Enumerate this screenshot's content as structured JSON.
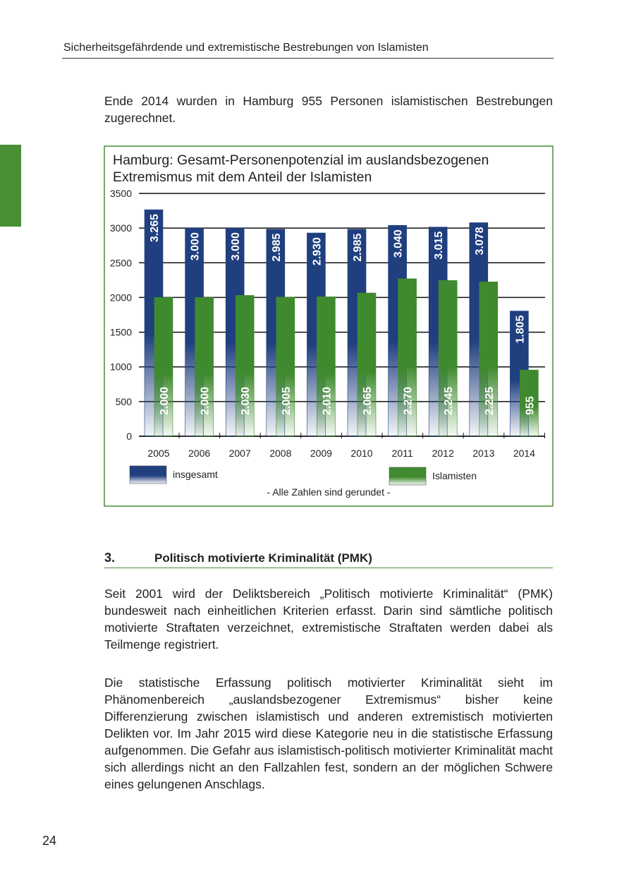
{
  "header": {
    "title": "Sicherheitsgefährdende und extremistische Bestrebungen von Islamisten"
  },
  "intro": "Ende 2014 wurden in Hamburg 955 Personen islamistischen Bestrebungen zugerechnet.",
  "chart_data": {
    "type": "bar",
    "title": "Hamburg: Gesamt-Personenpotenzial im auslandsbezogenen Extremismus mit dem Anteil der Islamisten",
    "categories": [
      "2005",
      "2006",
      "2007",
      "2008",
      "2009",
      "2010",
      "2011",
      "2012",
      "2013",
      "2014"
    ],
    "series": [
      {
        "name": "insgesamt",
        "color": "#1f3f7f",
        "values": [
          3265,
          3000,
          3000,
          2985,
          2930,
          2985,
          3040,
          3015,
          3078,
          1805
        ],
        "value_labels": [
          "3.265",
          "3.000",
          "3.000",
          "2.985",
          "2.930",
          "2.985",
          "3.040",
          "3.015",
          "3.078",
          "1.805"
        ]
      },
      {
        "name": "Islamisten",
        "color": "#3f8a2e",
        "values": [
          2000,
          2000,
          2030,
          2005,
          2010,
          2065,
          2270,
          2245,
          2225,
          955
        ],
        "value_labels": [
          "2.000",
          "2.000",
          "2.030",
          "2.005",
          "2.010",
          "2.065",
          "2.270",
          "2.245",
          "2.225",
          "955"
        ]
      }
    ],
    "ylim": [
      0,
      3500
    ],
    "yticks": [
      0,
      500,
      1000,
      1500,
      2000,
      2500,
      3000,
      3500
    ],
    "grid": true,
    "note": "- Alle Zahlen sind gerundet -"
  },
  "section": {
    "number": "3.",
    "title": "Politisch motivierte Kriminalität (PMK)",
    "paragraphs": [
      "Seit 2001 wird der Deliktsbereich „Politisch motivierte Kriminalität“ (PMK) bundesweit nach einheitlichen Kriterien erfasst. Darin sind sämtliche politisch motivierte Straftaten verzeichnet, extremistische Straftaten werden dabei als Teilmenge registriert.",
      "Die statistische Erfassung politisch motivierter Kriminalität sieht im Phänomenbereich „auslandsbezogener Extremismus“ bisher keine Differenzierung zwischen islamistisch und anderen extremistisch motivierten Delikten vor. Im Jahr 2015 wird diese Kategorie neu in die statistische Erfassung aufgenommen. Die Gefahr aus islamistisch-politisch motivierter Kriminalität macht sich allerdings nicht an den Fallzahlen fest, sondern an der möglichen Schwere eines gelungenen Anschlags."
    ]
  },
  "footer": {
    "page": "24"
  }
}
